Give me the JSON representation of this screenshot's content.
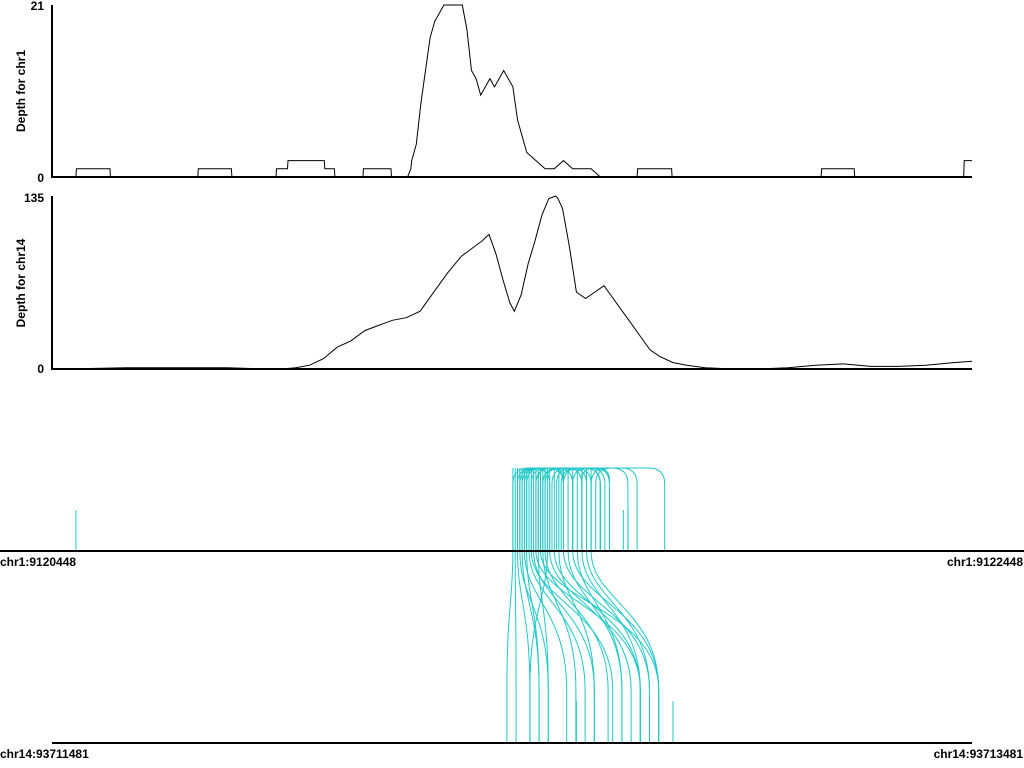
{
  "chart_data": [
    {
      "type": "line",
      "ylabel": "Depth for chr1",
      "ylim": [
        0,
        21
      ],
      "yticks": [
        "0",
        "21"
      ],
      "xlim": [
        9120448,
        9122448
      ],
      "color": "#000000",
      "x": [
        9120448,
        9120500,
        9120501,
        9120574,
        9120575,
        9120765,
        9120766,
        9120838,
        9120839,
        9120935,
        9120936,
        9120960,
        9120961,
        9120968,
        9120969,
        9121040,
        9121041,
        9121062,
        9121063,
        9121124,
        9121125,
        9121185,
        9121186,
        9121220,
        9121221,
        9121228,
        9121230,
        9121240,
        9121250,
        9121260,
        9121270,
        9121280,
        9121290,
        9121300,
        9121310,
        9121320,
        9121330,
        9121340,
        9121350,
        9121360,
        9121370,
        9121380,
        9121390,
        9121400,
        9121410,
        9121420,
        9121430,
        9121440,
        9121450,
        9121460,
        9121470,
        9121480,
        9121500,
        9121520,
        9121540,
        9121560,
        9121580,
        9121600,
        9121620,
        9121640,
        9121660,
        9121700,
        9121720,
        9121721,
        9121795,
        9121796,
        9121920,
        9121921,
        9121995,
        9122000,
        9122100,
        9122120,
        9122121,
        9122192,
        9122193,
        9122430,
        9122431,
        9122448
      ],
      "values": [
        0,
        0,
        1,
        1,
        0,
        0,
        1,
        1,
        0,
        0,
        1,
        1,
        2,
        2,
        2,
        2,
        1,
        1,
        0,
        0,
        1,
        1,
        0,
        0,
        0,
        1,
        2,
        4,
        9,
        13,
        17,
        19,
        20,
        21,
        21,
        21,
        21,
        21,
        18,
        13,
        12,
        10,
        11,
        12,
        11,
        12,
        13,
        12,
        11,
        7,
        5,
        3,
        2,
        1,
        1,
        2,
        1,
        1,
        1,
        0,
        0,
        0,
        0,
        1,
        1,
        0,
        0,
        0,
        0,
        0,
        0,
        0,
        1,
        1,
        0,
        0,
        2,
        2
      ]
    },
    {
      "type": "line",
      "ylabel": "Depth for chr14",
      "ylim": [
        0,
        135
      ],
      "yticks": [
        "0",
        "135"
      ],
      "xlim": [
        93711481,
        93713481
      ],
      "color": "#000000",
      "x": [
        93711481,
        93711511,
        93711641,
        93711761,
        93711861,
        93711951,
        93711981,
        93712011,
        93712041,
        93712071,
        93712101,
        93712131,
        93712161,
        93712191,
        93712221,
        93712251,
        93712281,
        93712311,
        93712341,
        93712371,
        93712386,
        93712401,
        93712416,
        93712431,
        93712446,
        93712461,
        93712476,
        93712486,
        93712501,
        93712516,
        93712531,
        93712546,
        93712561,
        93712576,
        93712581,
        93712591,
        93712606,
        93712621,
        93712641,
        93712661,
        93712681,
        93712701,
        93712721,
        93712741,
        93712761,
        93712781,
        93712801,
        93712831,
        93712861,
        93712901,
        93712961,
        93713021,
        93713081,
        93713141,
        93713201,
        93713261,
        93713321,
        93713381,
        93713441,
        93713481
      ],
      "values": [
        0,
        0,
        1,
        1,
        1,
        0,
        0,
        1,
        3,
        8,
        17,
        22,
        30,
        34,
        38,
        40,
        45,
        60,
        75,
        88,
        92,
        96,
        100,
        105,
        90,
        70,
        52,
        45,
        58,
        82,
        100,
        120,
        133,
        135,
        133,
        125,
        95,
        60,
        55,
        60,
        65,
        55,
        45,
        35,
        25,
        15,
        10,
        5,
        3,
        1,
        0,
        0,
        1,
        3,
        4,
        2,
        2,
        3,
        5,
        6
      ]
    },
    {
      "type": "arc",
      "color": "#20c8c8",
      "regions": [
        {
          "start": "chr1:9120448",
          "end": "chr1:9122448"
        },
        {
          "start": "chr14:93711481",
          "end": "chr14:93713481"
        }
      ],
      "chr1_singletons": [
        9120500,
        9121690,
        9121700
      ],
      "chr14_singletons": [
        93712621,
        93712831
      ],
      "chr1_arcs": [
        [
          9121450,
          9121530
        ],
        [
          9121460,
          9121560
        ],
        [
          9121465,
          9121640
        ],
        [
          9121470,
          9121700
        ],
        [
          9121475,
          9121560
        ],
        [
          9121480,
          9121610
        ],
        [
          9121490,
          9121600
        ],
        [
          9121500,
          9121580
        ],
        [
          9121505,
          9121560
        ],
        [
          9121515,
          9121600
        ],
        [
          9121520,
          9121640
        ],
        [
          9121535,
          9121620
        ],
        [
          9121545,
          9121640
        ],
        [
          9121555,
          9121650
        ],
        [
          9121560,
          9121660
        ],
        [
          9121580,
          9121660
        ],
        [
          9121600,
          9121660
        ],
        [
          9121620,
          9121780
        ],
        [
          9121630,
          9121720
        ]
      ],
      "translocations": [
        [
          9121450,
          93712470
        ],
        [
          9121455,
          93712490
        ],
        [
          9121460,
          93712520
        ],
        [
          9121465,
          93712560
        ],
        [
          9121470,
          93712540
        ],
        [
          9121475,
          93712600
        ],
        [
          9121480,
          93712540
        ],
        [
          9121485,
          93712640
        ],
        [
          9121490,
          93712700
        ],
        [
          9121495,
          93712660
        ],
        [
          9121500,
          93712760
        ],
        [
          9121505,
          93712560
        ],
        [
          9121510,
          93712800
        ],
        [
          9121515,
          93712620
        ],
        [
          9121520,
          93712690
        ],
        [
          9121525,
          93712520
        ],
        [
          9121530,
          93712740
        ],
        [
          9121540,
          93712760
        ],
        [
          9121550,
          93712660
        ],
        [
          9121560,
          93712780
        ],
        [
          9121570,
          93712720
        ],
        [
          9121580,
          93712800
        ],
        [
          9121590,
          93712720
        ],
        [
          9121600,
          93712760
        ],
        [
          9121610,
          93712780
        ],
        [
          9121620,
          93712800
        ]
      ]
    }
  ]
}
